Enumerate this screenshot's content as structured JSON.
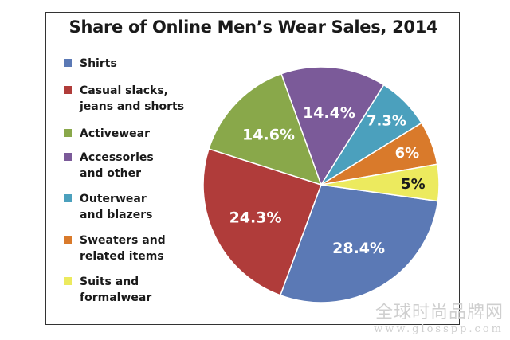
{
  "chart_data": {
    "type": "pie",
    "title": "Share of Online Men’s Wear Sales, 2014",
    "slices": [
      {
        "label": "Shirts",
        "value": 28.4,
        "display": "28.4%",
        "color": "#5b79b5",
        "text_color": "#ffffff"
      },
      {
        "label": "Casual slacks,\njeans and shorts",
        "value": 24.3,
        "display": "24.3%",
        "color": "#b03c3a",
        "text_color": "#ffffff"
      },
      {
        "label": "Activewear",
        "value": 14.6,
        "display": "14.6%",
        "color": "#89a84a",
        "text_color": "#ffffff"
      },
      {
        "label": "Accessories\nand other",
        "value": 14.4,
        "display": "14.4%",
        "color": "#7b5a99",
        "text_color": "#ffffff"
      },
      {
        "label": "Outerwear\nand blazers",
        "value": 7.3,
        "display": "7.3%",
        "color": "#4ba0bd",
        "text_color": "#ffffff"
      },
      {
        "label": "Sweaters and\nrelated items",
        "value": 6,
        "display": "6%",
        "color": "#d97a2b",
        "text_color": "#ffffff"
      },
      {
        "label": "Suits and\nformalwear",
        "value": 5,
        "display": "5%",
        "color": "#ecea5e",
        "text_color": "#1a1a1a"
      }
    ],
    "legend_position": "left"
  },
  "watermark": {
    "line1": "全球时尚品牌网",
    "line2": "www.glosspp.com"
  }
}
